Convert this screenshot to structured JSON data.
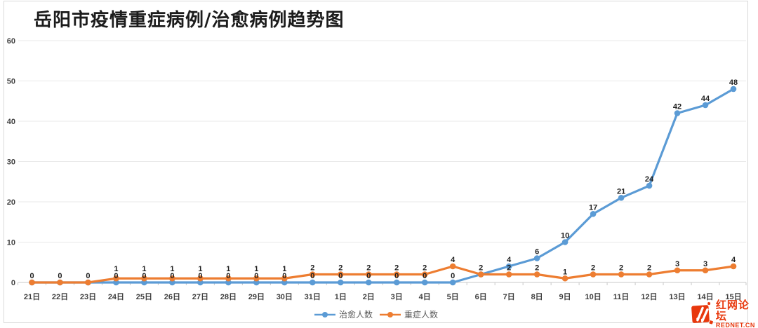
{
  "title": "岳阳市疫情重症病例/治愈病例趋势图",
  "chart_data": {
    "type": "line",
    "title": "岳阳市疫情重症病例/治愈病例趋势图",
    "categories": [
      "21日",
      "22日",
      "23日",
      "24日",
      "25日",
      "26日",
      "27日",
      "28日",
      "29日",
      "30日",
      "31日",
      "1日",
      "2日",
      "3日",
      "4日",
      "5日",
      "6日",
      "7日",
      "8日",
      "9日",
      "10日",
      "11日",
      "12日",
      "13日",
      "14日",
      "15日"
    ],
    "series": [
      {
        "name": "治愈人数",
        "color": "#5B9BD5",
        "values": [
          0,
          0,
          0,
          0,
          0,
          0,
          0,
          0,
          0,
          0,
          0,
          0,
          0,
          0,
          0,
          0,
          2,
          4,
          6,
          10,
          17,
          21,
          24,
          42,
          44,
          48
        ]
      },
      {
        "name": "重症人数",
        "color": "#ED7D31",
        "values": [
          0,
          0,
          0,
          1,
          1,
          1,
          1,
          1,
          1,
          1,
          2,
          2,
          2,
          2,
          2,
          4,
          2,
          2,
          2,
          1,
          2,
          2,
          2,
          3,
          3,
          4
        ]
      }
    ],
    "y_ticks": [
      0,
      10,
      20,
      30,
      40,
      50,
      60
    ],
    "ylim": [
      0,
      60
    ],
    "xlabel": "",
    "ylabel": "",
    "grid": true,
    "data_labels": true,
    "legend_position": "bottom"
  },
  "watermark": {
    "site_name": "红网论坛",
    "site_domain": "REDNET.CN",
    "color": "#E8380D"
  },
  "frame_color": "#d9d9d9",
  "grid_color": "#e8e8e8",
  "axis_color": "#c9c9c9"
}
